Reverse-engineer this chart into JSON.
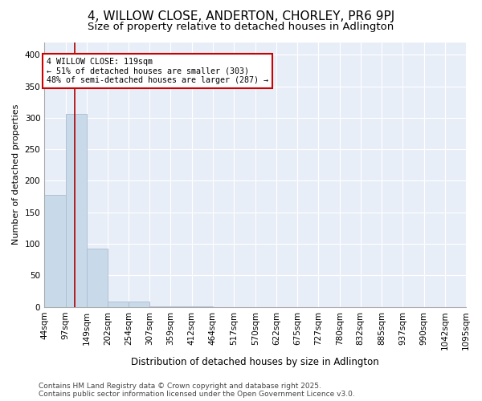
{
  "title": "4, WILLOW CLOSE, ANDERTON, CHORLEY, PR6 9PJ",
  "subtitle": "Size of property relative to detached houses in Adlington",
  "xlabel": "Distribution of detached houses by size in Adlington",
  "ylabel": "Number of detached properties",
  "bar_color": "#c8daea",
  "bar_edge_color": "#aabcce",
  "annotation_text": "4 WILLOW CLOSE: 119sqm\n← 51% of detached houses are smaller (303)\n48% of semi-detached houses are larger (287) →",
  "annotation_box_color": "#cc0000",
  "vline_x": 119,
  "vline_color": "#aa0000",
  "bins": [
    44,
    97,
    149,
    202,
    254,
    307,
    359,
    412,
    464,
    517,
    570,
    622,
    675,
    727,
    780,
    832,
    885,
    937,
    990,
    1042,
    1095
  ],
  "bin_labels": [
    "44sqm",
    "97sqm",
    "149sqm",
    "202sqm",
    "254sqm",
    "307sqm",
    "359sqm",
    "412sqm",
    "464sqm",
    "517sqm",
    "570sqm",
    "622sqm",
    "675sqm",
    "727sqm",
    "780sqm",
    "832sqm",
    "885sqm",
    "937sqm",
    "990sqm",
    "1042sqm",
    "1095sqm"
  ],
  "counts": [
    178,
    306,
    93,
    9,
    9,
    1,
    1,
    1,
    0,
    0,
    0,
    0,
    0,
    0,
    0,
    0,
    0,
    0,
    0,
    0
  ],
  "ylim": [
    0,
    420
  ],
  "yticks": [
    0,
    50,
    100,
    150,
    200,
    250,
    300,
    350,
    400
  ],
  "footnote": "Contains HM Land Registry data © Crown copyright and database right 2025.\nContains public sector information licensed under the Open Government Licence v3.0.",
  "plot_bg_color": "#e8eef8",
  "fig_bg_color": "#ffffff",
  "title_fontsize": 11,
  "subtitle_fontsize": 9.5,
  "xlabel_fontsize": 8.5,
  "ylabel_fontsize": 8,
  "tick_fontsize": 7.5,
  "footnote_fontsize": 6.5
}
